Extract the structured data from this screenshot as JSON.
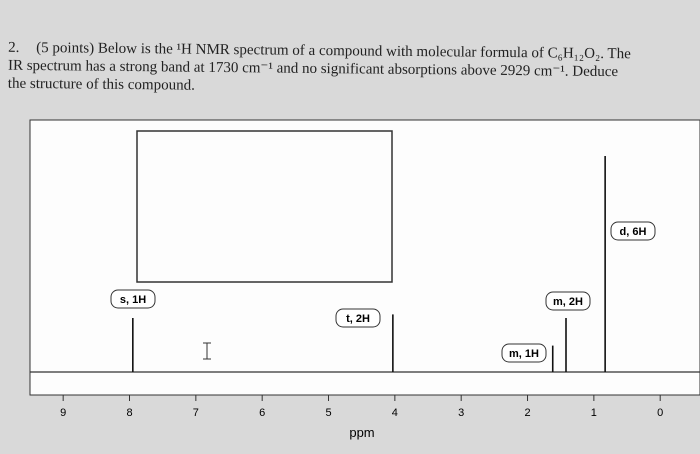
{
  "question": {
    "number": "2.",
    "lines": [
      "(5 points) Below is the ¹H NMR spectrum of a compound with molecular formula of C₆H₁₂O₂. The",
      "IR spectrum has a strong band at 1730 cm⁻¹ and no significant absorptions above 2929 cm⁻¹. Deduce",
      "the structure of this compound."
    ]
  },
  "spectrum": {
    "xlabel": "ppm",
    "xlim": [
      9.5,
      -0.6
    ],
    "xticks": [
      9,
      8,
      7,
      6,
      5,
      4,
      3,
      2,
      1,
      0
    ],
    "ylim": [
      0,
      100
    ],
    "peaks": [
      {
        "ppm": 7.95,
        "intensity": 22.5,
        "label": "s, 1H"
      },
      {
        "ppm": 4.03,
        "intensity": 24,
        "label": "t, 2H"
      },
      {
        "ppm": 1.62,
        "intensity": 11,
        "label": "m, 1H"
      },
      {
        "ppm": 1.42,
        "intensity": 22.5,
        "label": "m, 2H"
      },
      {
        "ppm": 0.83,
        "intensity": 90,
        "label": "d, 6H"
      }
    ]
  }
}
